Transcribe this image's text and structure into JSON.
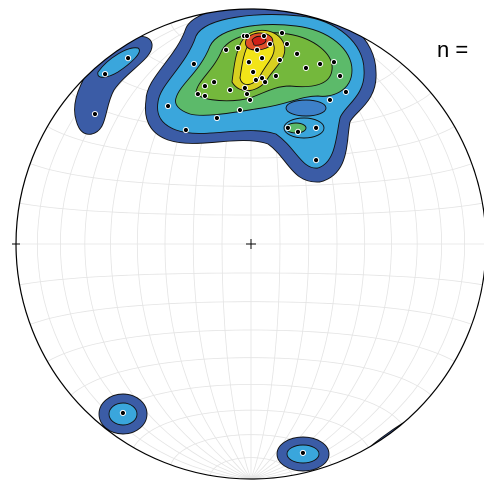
{
  "chart_data": {
    "type": "stereonet",
    "annotation": "n =",
    "xlim": [
      -1,
      1
    ],
    "ylim": [
      -1,
      1
    ],
    "grid": true,
    "point_color": "#000000",
    "x": [
      -0.03,
      -0.017,
      0.055,
      0.132,
      0.153,
      0.081,
      0.026,
      0.047,
      -0.055,
      -0.106,
      -0.009,
      0.009,
      0.047,
      0.021,
      -0.026,
      -0.017,
      0.06,
      0.106,
      0.123,
      0.196,
      0.234,
      0.294,
      0.353,
      0.379,
      0.336,
      0.404,
      -0.157,
      -0.196,
      -0.226,
      -0.196,
      -0.353,
      -0.243,
      -0.089,
      -0.004,
      -0.047,
      -0.145,
      -0.277,
      0.157,
      0.2,
      0.277,
      0.277,
      -0.621,
      -0.523,
      -0.664,
      -0.545,
      0.221
    ],
    "y": [
      0.885,
      0.885,
      0.885,
      0.898,
      0.851,
      0.851,
      0.826,
      0.791,
      0.834,
      0.826,
      0.774,
      0.732,
      0.706,
      0.698,
      0.664,
      0.638,
      0.689,
      0.715,
      0.783,
      0.809,
      0.749,
      0.766,
      0.774,
      0.715,
      0.613,
      0.647,
      0.689,
      0.672,
      0.638,
      0.63,
      0.587,
      0.766,
      0.655,
      0.613,
      0.57,
      0.536,
      0.485,
      0.494,
      0.477,
      0.494,
      0.357,
      0.723,
      0.791,
      0.553,
      -0.719,
      -0.889
    ]
  }
}
